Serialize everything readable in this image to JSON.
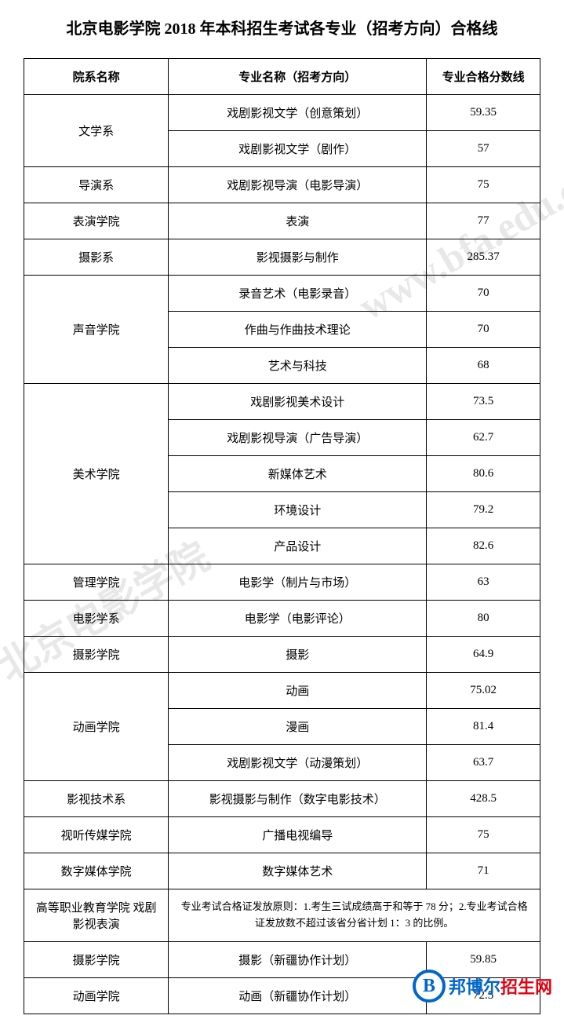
{
  "title": "北京电影学院 2018 年本科招生考试各专业（招考方向）合格线",
  "columns": {
    "dept": "院系名称",
    "major": "专业名称（招考方向）",
    "score": "专业合格分数线"
  },
  "watermarks": {
    "wm1": "www.bfa.edu.cn",
    "wm2": "北京电影学院"
  },
  "rows": [
    {
      "dept": "文学系",
      "rowspan": 2,
      "major": "戏剧影视文学（创意策划）",
      "score": "59.35"
    },
    {
      "major": "戏剧影视文学（剧作）",
      "score": "57"
    },
    {
      "dept": "导演系",
      "rowspan": 1,
      "major": "戏剧影视导演（电影导演）",
      "score": "75"
    },
    {
      "dept": "表演学院",
      "rowspan": 1,
      "major": "表演",
      "score": "77"
    },
    {
      "dept": "摄影系",
      "rowspan": 1,
      "major": "影视摄影与制作",
      "score": "285.37"
    },
    {
      "dept": "声音学院",
      "rowspan": 3,
      "major": "录音艺术（电影录音）",
      "score": "70"
    },
    {
      "major": "作曲与作曲技术理论",
      "score": "70"
    },
    {
      "major": "艺术与科技",
      "score": "68"
    },
    {
      "dept": "美术学院",
      "rowspan": 5,
      "major": "戏剧影视美术设计",
      "score": "73.5"
    },
    {
      "major": "戏剧影视导演（广告导演）",
      "score": "62.7"
    },
    {
      "major": "新媒体艺术",
      "score": "80.6"
    },
    {
      "major": "环境设计",
      "score": "79.2"
    },
    {
      "major": "产品设计",
      "score": "82.6"
    },
    {
      "dept": "管理学院",
      "rowspan": 1,
      "major": "电影学（制片与市场）",
      "score": "63"
    },
    {
      "dept": "电影学系",
      "rowspan": 1,
      "major": "电影学（电影评论）",
      "score": "80"
    },
    {
      "dept": "摄影学院",
      "rowspan": 1,
      "major": "摄影",
      "score": "64.9"
    },
    {
      "dept": "动画学院",
      "rowspan": 3,
      "major": "动画",
      "score": "75.02"
    },
    {
      "major": "漫画",
      "score": "81.4"
    },
    {
      "major": "戏剧影视文学（动漫策划）",
      "score": "63.7"
    },
    {
      "dept": "影视技术系",
      "rowspan": 1,
      "major": "影视摄影与制作（数字电影技术）",
      "score": "428.5"
    },
    {
      "dept": "视听传媒学院",
      "rowspan": 1,
      "major": "广播电视编导",
      "score": "75"
    },
    {
      "dept": "数字媒体学院",
      "rowspan": 1,
      "major": "数字媒体艺术",
      "score": "71"
    },
    {
      "dept": "高等职业教育学院 戏剧影视表演",
      "rowspan": 1,
      "note": "专业考试合格证发放原则：1.考生三试成绩高于和等于 78 分；2.专业考试合格证发放数不超过该省分省计划 1：3 的比例。"
    },
    {
      "dept": "摄影学院",
      "rowspan": 1,
      "major": "摄影（新疆协作计划）",
      "score": "59.85"
    },
    {
      "dept": "动画学院",
      "rowspan": 1,
      "major": "动画（新疆协作计划）",
      "score": "72.5"
    }
  ],
  "logo": {
    "letter": "B",
    "text_blue": "邦博尔",
    "text_red": "招生网"
  },
  "colors": {
    "border": "#000000",
    "watermark": "#e8e8e8",
    "logo_blue": "#0066cc",
    "logo_red": "#e60012",
    "background": "#ffffff"
  },
  "typography": {
    "title_fontsize": 20,
    "body_fontsize": 15,
    "note_fontsize": 13,
    "watermark_fontsize": 50,
    "logo_letter_fontsize": 24,
    "logo_text_fontsize": 22
  }
}
